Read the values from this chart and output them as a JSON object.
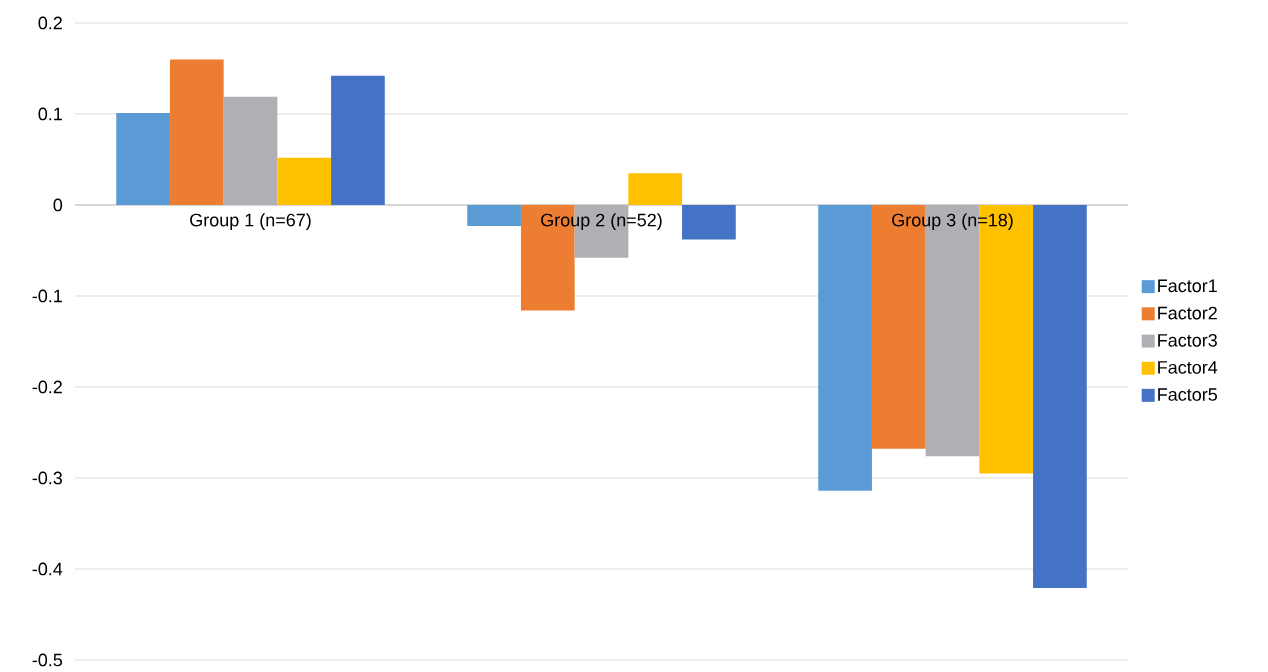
{
  "chart_data": {
    "type": "bar",
    "categories": [
      "Group 1 (n=67)",
      "Group 2 (n=52)",
      "Group 3 (n=18)"
    ],
    "series": [
      {
        "name": "Factor1",
        "color": "#5b9bd5",
        "values": [
          0.101,
          -0.023,
          -0.314
        ]
      },
      {
        "name": "Factor2",
        "color": "#ed7d31",
        "values": [
          0.16,
          -0.116,
          -0.268
        ]
      },
      {
        "name": "Factor3",
        "color": "#b0b0b4",
        "values": [
          0.119,
          -0.058,
          -0.276
        ]
      },
      {
        "name": "Factor4",
        "color": "#ffc000",
        "values": [
          0.052,
          0.035,
          -0.295
        ]
      },
      {
        "name": "Factor5",
        "color": "#4472c4",
        "values": [
          0.142,
          -0.038,
          -0.421
        ]
      }
    ],
    "ylim": [
      -0.5,
      0.2
    ],
    "yticks": [
      -0.5,
      -0.4,
      -0.3,
      -0.2,
      -0.1,
      0,
      0.1,
      0.2
    ],
    "grid": "y",
    "legend": "right"
  }
}
